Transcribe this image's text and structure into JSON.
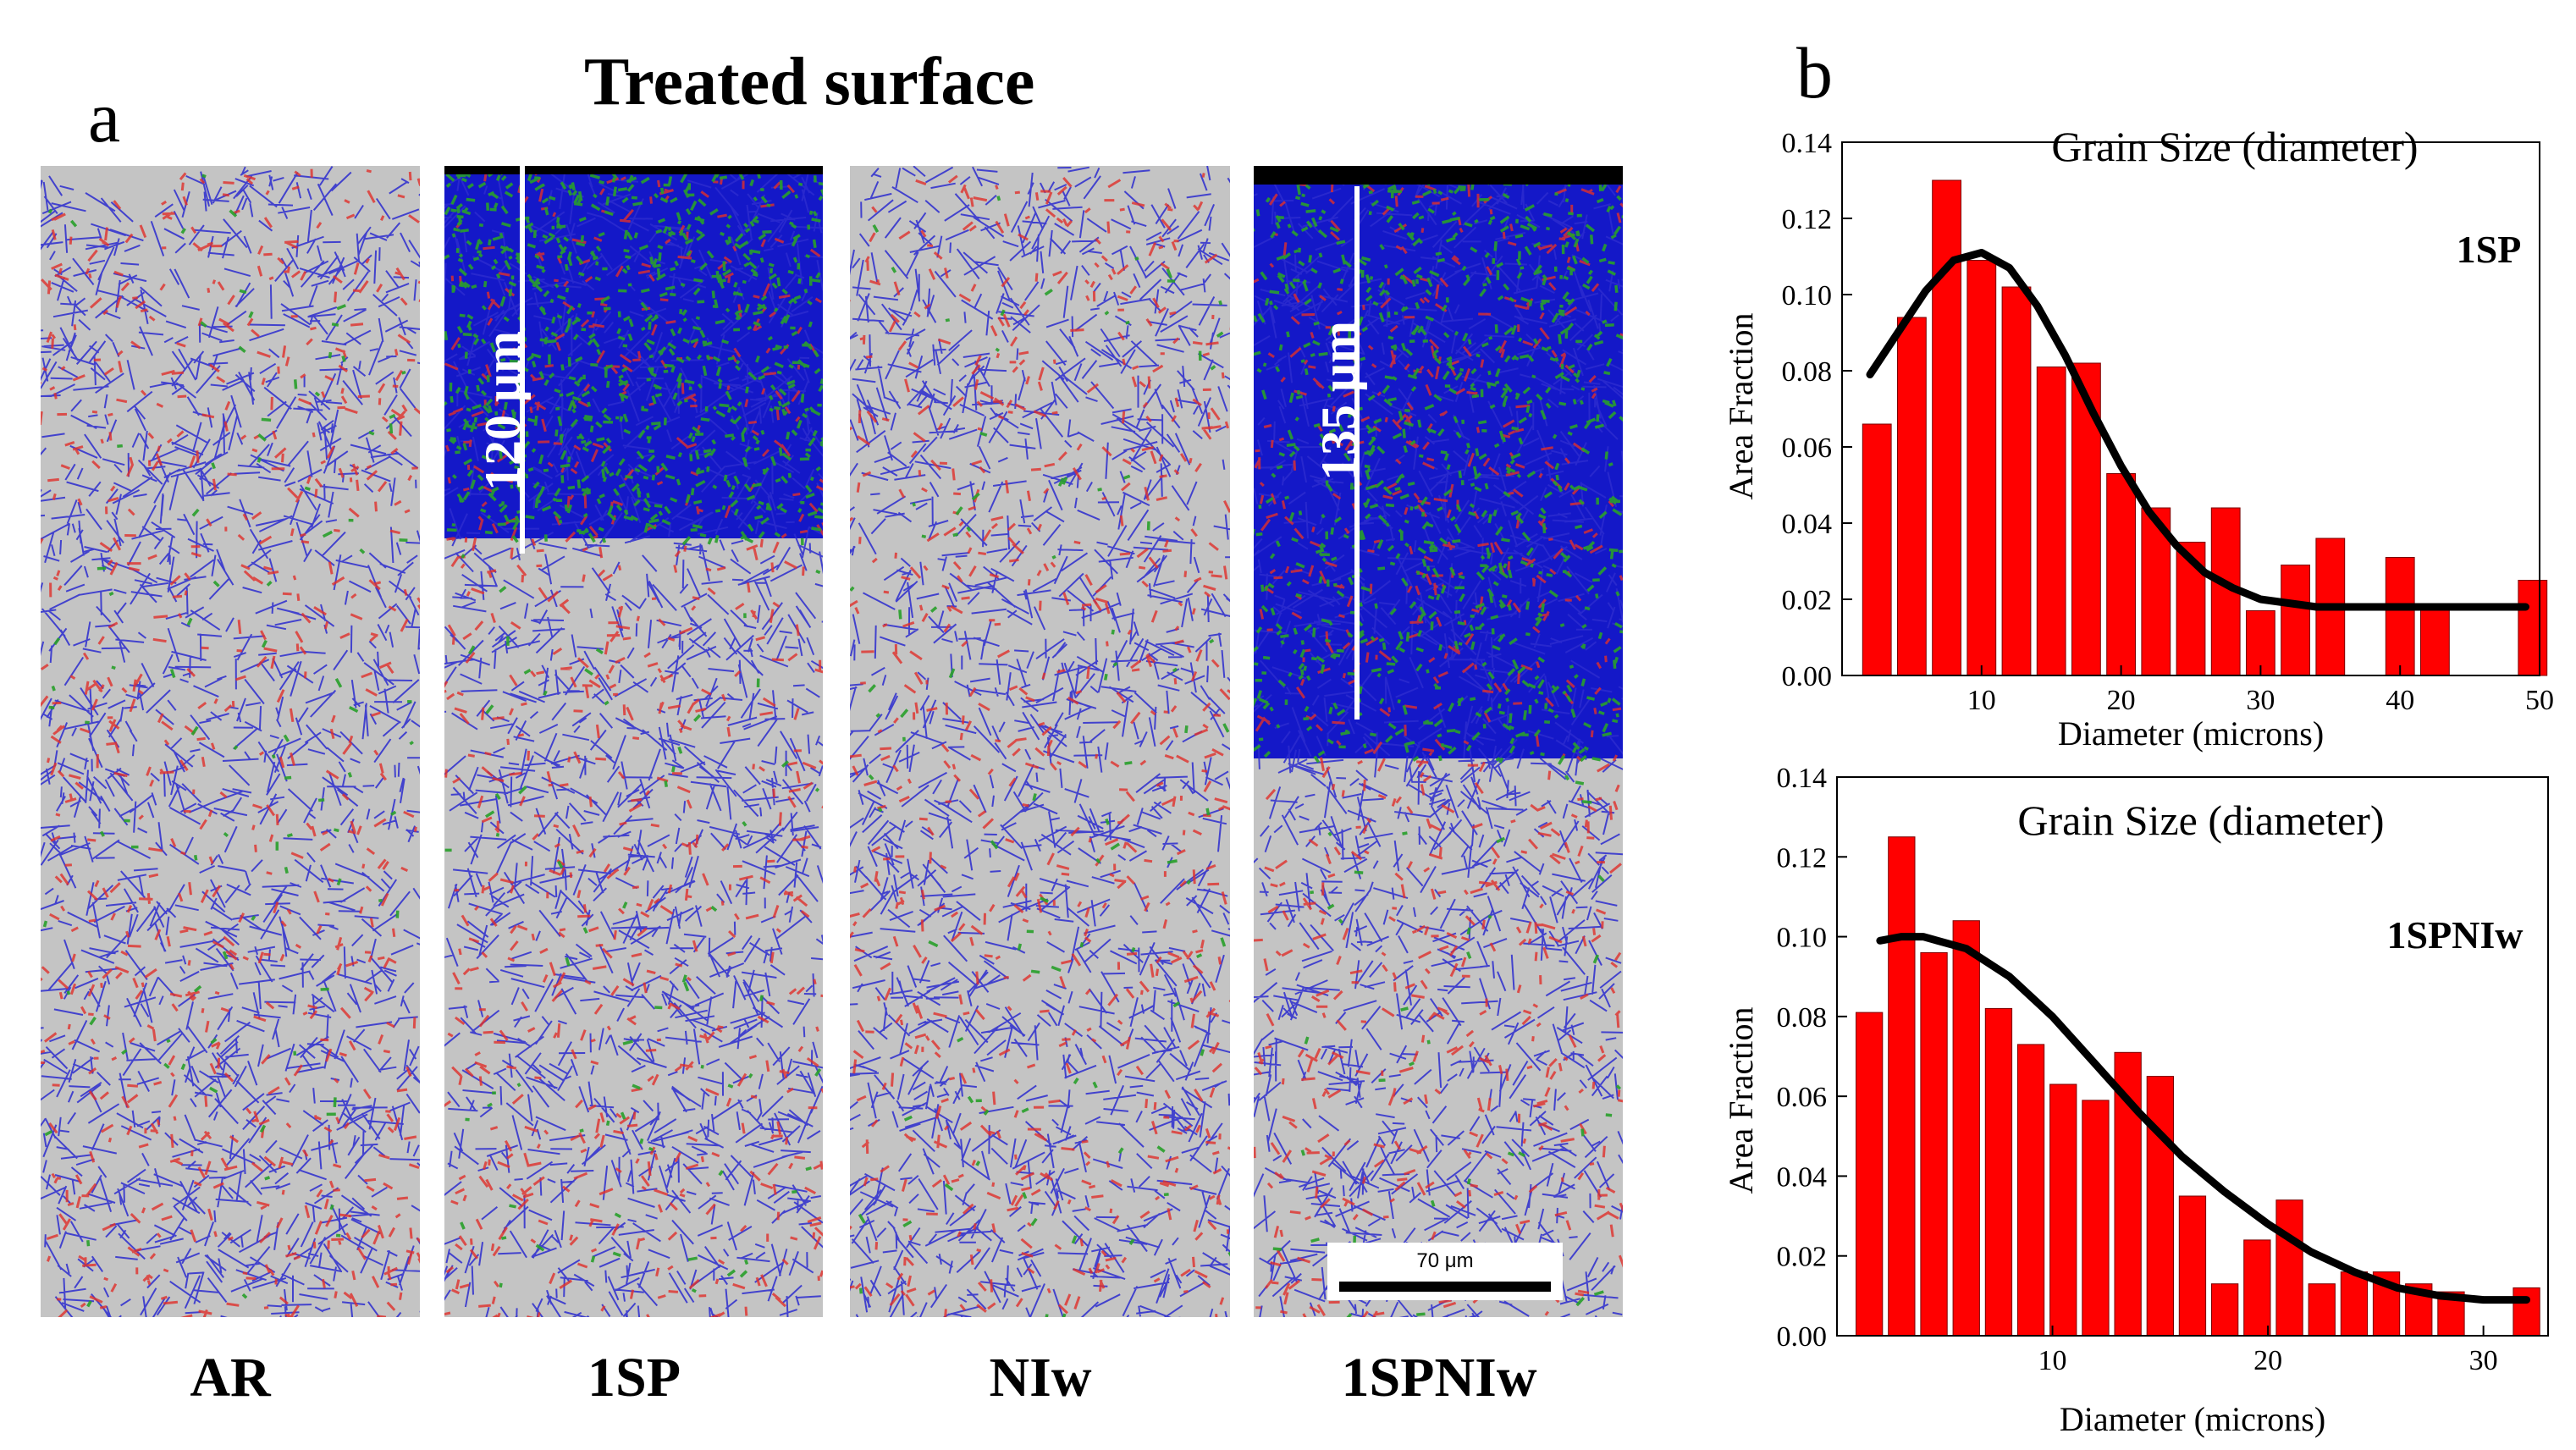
{
  "panel_a": {
    "letter": "a",
    "title": "Treated surface",
    "samples": [
      {
        "label": "AR",
        "depth": "",
        "scale_bar": ""
      },
      {
        "label": "1SP",
        "depth": "120 μm",
        "scale_bar": ""
      },
      {
        "label": "NIw",
        "depth": "",
        "scale_bar": ""
      },
      {
        "label": "1SPNIw",
        "depth": "135 μm",
        "scale_bar": "70 μm"
      }
    ],
    "colors": {
      "boundary": "#2c2ccf",
      "red": "#e0302a",
      "green": "#28a02a",
      "matrix": "#c4c4c4",
      "deformed": "#1418c8"
    }
  },
  "panel_b": {
    "letter": "b"
  },
  "chart_data": [
    {
      "type": "bar",
      "title": "Grain Size (diameter)",
      "annotation": "1SP",
      "xlabel": "Diameter (microns)",
      "ylabel": "Area Fraction",
      "xlim": [
        0,
        50
      ],
      "ylim": [
        0,
        0.14
      ],
      "xticks": [
        10,
        20,
        30,
        40,
        50
      ],
      "yticks": [
        "0.00",
        "0.02",
        "0.04",
        "0.06",
        "0.08",
        "0.10",
        "0.12",
        "0.14"
      ],
      "bar_color": "#ff0000",
      "fit_color": "#000000",
      "x": [
        2.5,
        5.0,
        7.5,
        10.0,
        12.5,
        15.0,
        17.5,
        20.0,
        22.5,
        25.0,
        27.5,
        30.0,
        32.5,
        35.0,
        40.0,
        42.5,
        49.5
      ],
      "values": [
        0.066,
        0.094,
        0.13,
        0.109,
        0.102,
        0.081,
        0.082,
        0.053,
        0.044,
        0.035,
        0.044,
        0.017,
        0.029,
        0.036,
        0.031,
        0.018,
        0.025
      ],
      "fit": {
        "x": [
          2,
          4,
          6,
          8,
          10,
          12,
          14,
          16,
          18,
          20,
          22,
          24,
          26,
          28,
          30,
          32,
          34,
          36,
          40,
          45,
          49
        ],
        "y": [
          0.079,
          0.09,
          0.101,
          0.109,
          0.111,
          0.107,
          0.097,
          0.084,
          0.069,
          0.055,
          0.043,
          0.034,
          0.027,
          0.023,
          0.02,
          0.019,
          0.018,
          0.018,
          0.018,
          0.018,
          0.018
        ]
      }
    },
    {
      "type": "bar",
      "title": "Grain Size (diameter)",
      "annotation": "1SPNIw",
      "xlabel": "Diameter (microns)",
      "ylabel": "Area Fraction",
      "xlim": [
        0,
        33
      ],
      "ylim": [
        0,
        0.14
      ],
      "xticks": [
        10,
        20,
        30
      ],
      "yticks": [
        "0.00",
        "0.02",
        "0.04",
        "0.06",
        "0.08",
        "0.10",
        "0.12",
        "0.14"
      ],
      "bar_color": "#ff0000",
      "fit_color": "#000000",
      "x": [
        1.5,
        3.0,
        4.5,
        6.0,
        7.5,
        9.0,
        10.5,
        12.0,
        13.5,
        15.0,
        16.5,
        18.0,
        19.5,
        21.0,
        22.5,
        24.0,
        25.5,
        27.0,
        28.5,
        32.0
      ],
      "values": [
        0.081,
        0.125,
        0.096,
        0.104,
        0.082,
        0.073,
        0.063,
        0.059,
        0.071,
        0.065,
        0.035,
        0.013,
        0.024,
        0.034,
        0.013,
        0.016,
        0.016,
        0.013,
        0.011,
        0.012
      ],
      "fit": {
        "x": [
          2,
          3,
          4,
          6,
          8,
          10,
          12,
          14,
          16,
          18,
          20,
          22,
          24,
          26,
          28,
          30,
          32
        ],
        "y": [
          0.099,
          0.1,
          0.1,
          0.097,
          0.09,
          0.08,
          0.068,
          0.056,
          0.045,
          0.036,
          0.028,
          0.021,
          0.016,
          0.012,
          0.01,
          0.009,
          0.009
        ]
      }
    }
  ]
}
